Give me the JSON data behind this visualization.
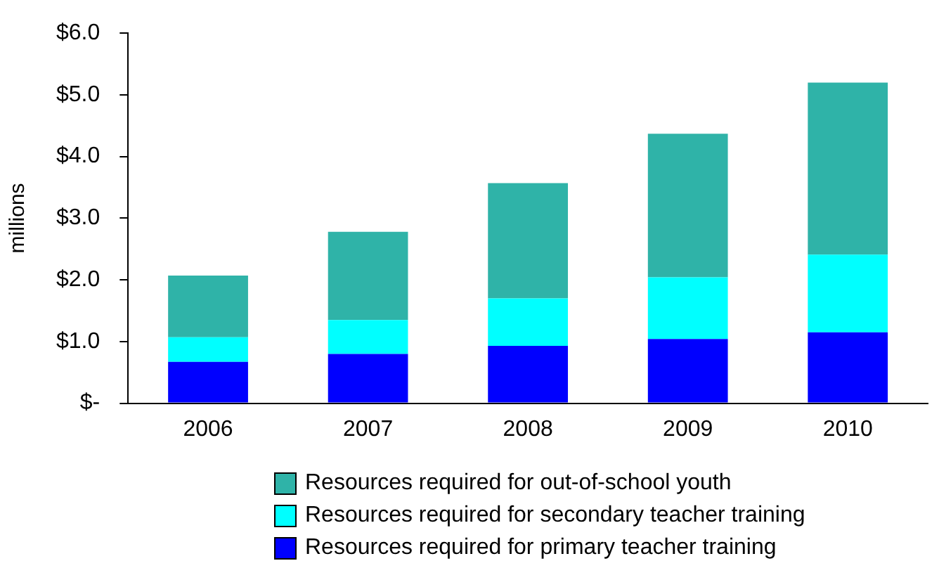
{
  "chart_data": {
    "type": "bar",
    "stacked": true,
    "ylabel": "millions",
    "categories": [
      "2006",
      "2007",
      "2008",
      "2009",
      "2010"
    ],
    "series": [
      {
        "name": "Resources required for primary teacher training",
        "color": "#0000ff",
        "values": [
          0.67,
          0.8,
          0.93,
          1.04,
          1.15
        ]
      },
      {
        "name": "Resources required for secondary teacher training",
        "color": "#00ffff",
        "values": [
          0.4,
          0.55,
          0.77,
          1.0,
          1.26
        ]
      },
      {
        "name": "Resources required for out-of-school youth",
        "color": "#2fb3a8",
        "values": [
          1.0,
          1.43,
          1.87,
          2.33,
          2.79
        ]
      }
    ],
    "ylim": [
      0,
      6
    ],
    "yticks": [
      {
        "value": 0,
        "label": "$-"
      },
      {
        "value": 1,
        "label": "$1.0"
      },
      {
        "value": 2,
        "label": "$2.0"
      },
      {
        "value": 3,
        "label": "$3.0"
      },
      {
        "value": 4,
        "label": "$4.0"
      },
      {
        "value": 5,
        "label": "$5.0"
      },
      {
        "value": 6,
        "label": "$6.0"
      }
    ],
    "grid": false,
    "legend": "bottom"
  }
}
